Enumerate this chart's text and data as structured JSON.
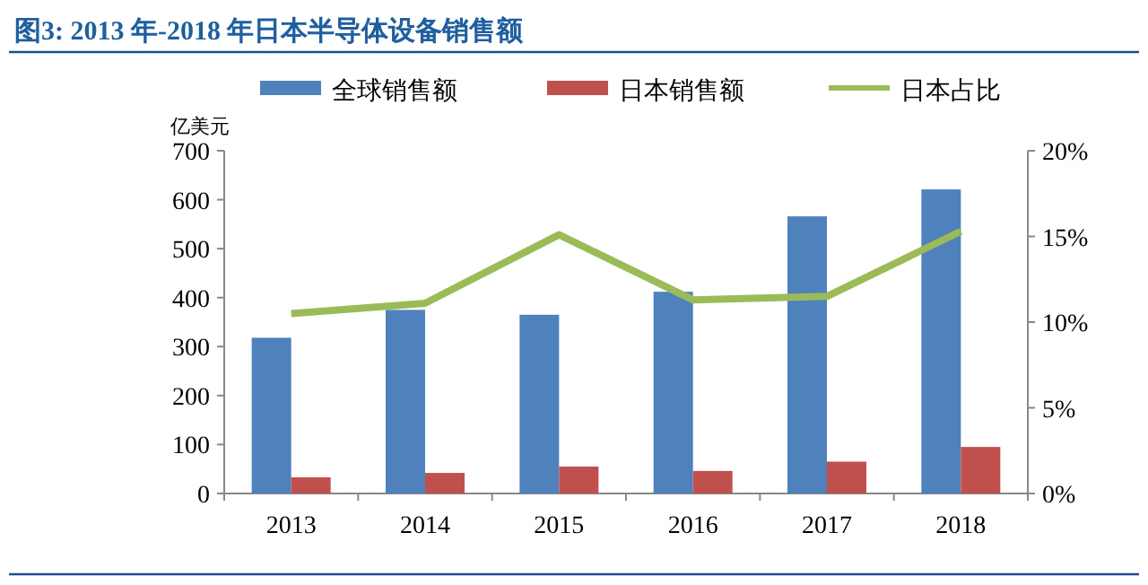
{
  "chart_data": {
    "type": "bar",
    "title": "图3: 2013 年-2018 年日本半导体设备销售额",
    "ylabel": "亿美元",
    "categories": [
      "2013",
      "2014",
      "2015",
      "2016",
      "2017",
      "2018"
    ],
    "series": [
      {
        "name": "全球销售额",
        "color": "#4f81bd",
        "values": [
          318,
          375,
          365,
          412,
          566,
          621
        ]
      },
      {
        "name": "日本销售额",
        "color": "#c0504d",
        "values": [
          33,
          42,
          55,
          46,
          65,
          95
        ]
      },
      {
        "name": "日本占比",
        "type": "line",
        "axis": "y2",
        "color": "#9bbb59",
        "values": [
          10.5,
          11.1,
          15.1,
          11.3,
          11.5,
          15.3
        ]
      }
    ],
    "ylim": [
      0,
      700
    ],
    "yticks": [
      0,
      100,
      200,
      300,
      400,
      500,
      600,
      700
    ],
    "y2lim": [
      0,
      20
    ],
    "y2ticks": [
      {
        "value": 0,
        "label": "0%"
      },
      {
        "value": 5,
        "label": "5%"
      },
      {
        "value": 10,
        "label": "10%"
      },
      {
        "value": 15,
        "label": "15%"
      },
      {
        "value": 20,
        "label": "20%"
      }
    ],
    "grid": false,
    "legend": "top",
    "marker": "none",
    "line_style": "solid"
  }
}
